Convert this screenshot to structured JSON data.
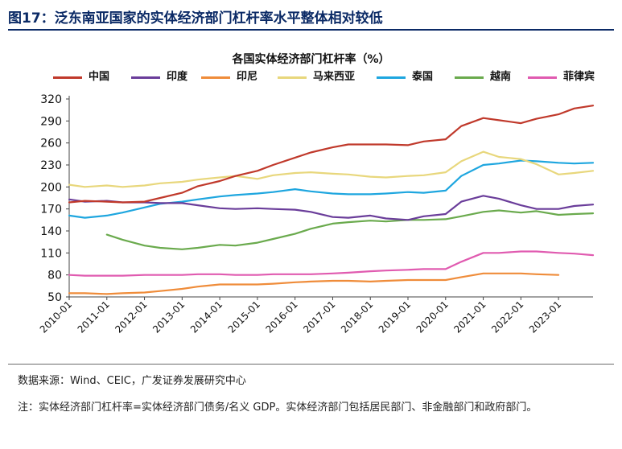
{
  "figure_title": "图17：泛东南亚国家的实体经济部门杠杆率水平整体相对较低",
  "source": "数据来源：Wind、CEIC，广发证券发展研究中心",
  "note": "注：实体经济部门杠杆率=实体经济部门债务/名义 GDP。实体经济部门包括居民部门、非金融部门和政府部门。",
  "chart_data": {
    "type": "line",
    "title": "各国实体经济部门杠杆率（%）",
    "xlabel": "",
    "ylabel": "",
    "ylim": [
      50,
      320
    ],
    "yticks": [
      50,
      80,
      110,
      140,
      170,
      200,
      230,
      260,
      290,
      320
    ],
    "xlim": [
      "2010-01",
      "2023-12"
    ],
    "xticks": [
      "2010-01",
      "2011-01",
      "2012-01",
      "2013-01",
      "2014-01",
      "2015-01",
      "2016-01",
      "2017-01",
      "2018-01",
      "2019-01",
      "2020-01",
      "2021-01",
      "2022-01",
      "2023-01"
    ],
    "legend_position": "top",
    "grid": false,
    "series": [
      {
        "name": "中国",
        "color": "#c0392b",
        "x": [
          "2010-01",
          "2010-06",
          "2011-01",
          "2011-06",
          "2012-01",
          "2012-06",
          "2013-01",
          "2013-06",
          "2014-01",
          "2014-06",
          "2015-01",
          "2015-06",
          "2016-01",
          "2016-06",
          "2017-01",
          "2017-06",
          "2018-01",
          "2018-06",
          "2019-01",
          "2019-06",
          "2020-01",
          "2020-06",
          "2021-01",
          "2021-06",
          "2022-01",
          "2022-06",
          "2023-01",
          "2023-06",
          "2023-12"
        ],
        "values": [
          179,
          181,
          180,
          179,
          180,
          185,
          192,
          201,
          208,
          215,
          222,
          230,
          240,
          247,
          254,
          258,
          258,
          258,
          257,
          262,
          265,
          283,
          294,
          291,
          287,
          293,
          299,
          307,
          311
        ]
      },
      {
        "name": "印度",
        "color": "#6a3d9a",
        "x": [
          "2010-01",
          "2010-06",
          "2011-01",
          "2011-06",
          "2012-01",
          "2012-06",
          "2013-01",
          "2013-06",
          "2014-01",
          "2014-06",
          "2015-01",
          "2015-06",
          "2016-01",
          "2016-06",
          "2017-01",
          "2017-06",
          "2018-01",
          "2018-06",
          "2019-01",
          "2019-06",
          "2020-01",
          "2020-06",
          "2021-01",
          "2021-06",
          "2022-01",
          "2022-06",
          "2023-01",
          "2023-06",
          "2023-12"
        ],
        "values": [
          183,
          180,
          181,
          179,
          179,
          178,
          178,
          175,
          171,
          170,
          171,
          170,
          169,
          166,
          159,
          158,
          161,
          157,
          155,
          160,
          163,
          180,
          188,
          184,
          175,
          170,
          170,
          174,
          176
        ]
      },
      {
        "name": "印尼",
        "color": "#ef8c3a",
        "x": [
          "2010-01",
          "2010-06",
          "2011-01",
          "2011-06",
          "2012-01",
          "2012-06",
          "2013-01",
          "2013-06",
          "2014-01",
          "2014-06",
          "2015-01",
          "2015-06",
          "2016-01",
          "2016-06",
          "2017-01",
          "2017-06",
          "2018-01",
          "2018-06",
          "2019-01",
          "2019-06",
          "2020-01",
          "2020-06",
          "2021-01",
          "2021-06",
          "2022-01",
          "2022-06",
          "2023-01"
        ],
        "values": [
          55,
          55,
          54,
          55,
          56,
          58,
          61,
          64,
          67,
          67,
          67,
          68,
          70,
          71,
          72,
          72,
          71,
          72,
          73,
          73,
          73,
          77,
          82,
          82,
          82,
          81,
          80
        ]
      },
      {
        "name": "马来西亚",
        "color": "#e8d77c",
        "x": [
          "2010-01",
          "2010-06",
          "2011-01",
          "2011-06",
          "2012-01",
          "2012-06",
          "2013-01",
          "2013-06",
          "2014-01",
          "2014-06",
          "2015-01",
          "2015-06",
          "2016-01",
          "2016-06",
          "2017-01",
          "2017-06",
          "2018-01",
          "2018-06",
          "2019-01",
          "2019-06",
          "2020-01",
          "2020-06",
          "2021-01",
          "2021-06",
          "2022-01",
          "2022-06",
          "2023-01",
          "2023-06",
          "2023-12"
        ],
        "values": [
          203,
          200,
          202,
          200,
          202,
          205,
          207,
          210,
          213,
          215,
          211,
          216,
          219,
          220,
          218,
          217,
          214,
          213,
          215,
          216,
          220,
          235,
          248,
          241,
          238,
          231,
          217,
          219,
          222
        ]
      },
      {
        "name": "泰国",
        "color": "#1ea6df",
        "x": [
          "2010-01",
          "2010-06",
          "2011-01",
          "2011-06",
          "2012-01",
          "2012-06",
          "2013-01",
          "2013-06",
          "2014-01",
          "2014-06",
          "2015-01",
          "2015-06",
          "2016-01",
          "2016-06",
          "2017-01",
          "2017-06",
          "2018-01",
          "2018-06",
          "2019-01",
          "2019-06",
          "2020-01",
          "2020-06",
          "2021-01",
          "2021-06",
          "2022-01",
          "2022-06",
          "2023-01",
          "2023-06",
          "2023-12"
        ],
        "values": [
          161,
          158,
          161,
          165,
          172,
          177,
          180,
          183,
          187,
          189,
          191,
          193,
          197,
          194,
          191,
          190,
          190,
          191,
          193,
          192,
          195,
          215,
          230,
          232,
          236,
          235,
          233,
          232,
          233
        ]
      },
      {
        "name": "越南",
        "color": "#6aaa4d",
        "x": [
          "2011-01",
          "2011-06",
          "2012-01",
          "2012-06",
          "2013-01",
          "2013-06",
          "2014-01",
          "2014-06",
          "2015-01",
          "2015-06",
          "2016-01",
          "2016-06",
          "2017-01",
          "2017-06",
          "2018-01",
          "2018-06",
          "2019-01",
          "2019-06",
          "2020-01",
          "2020-06",
          "2021-01",
          "2021-06",
          "2022-01",
          "2022-06",
          "2023-01",
          "2023-06",
          "2023-12"
        ],
        "values": [
          135,
          128,
          120,
          117,
          115,
          117,
          121,
          120,
          124,
          129,
          136,
          143,
          150,
          152,
          154,
          153,
          155,
          155,
          156,
          160,
          166,
          168,
          165,
          167,
          162,
          163,
          164
        ]
      },
      {
        "name": "菲律宾",
        "color": "#e05bb0",
        "x": [
          "2010-01",
          "2010-06",
          "2011-01",
          "2011-06",
          "2012-01",
          "2012-06",
          "2013-01",
          "2013-06",
          "2014-01",
          "2014-06",
          "2015-01",
          "2015-06",
          "2016-01",
          "2016-06",
          "2017-01",
          "2017-06",
          "2018-01",
          "2018-06",
          "2019-01",
          "2019-06",
          "2020-01",
          "2020-06",
          "2021-01",
          "2021-06",
          "2022-01",
          "2022-06",
          "2023-01",
          "2023-06",
          "2023-12"
        ],
        "values": [
          80,
          79,
          79,
          79,
          80,
          80,
          80,
          81,
          81,
          80,
          80,
          81,
          81,
          81,
          82,
          83,
          85,
          86,
          87,
          88,
          88,
          98,
          110,
          110,
          112,
          112,
          110,
          109,
          107
        ]
      }
    ]
  }
}
